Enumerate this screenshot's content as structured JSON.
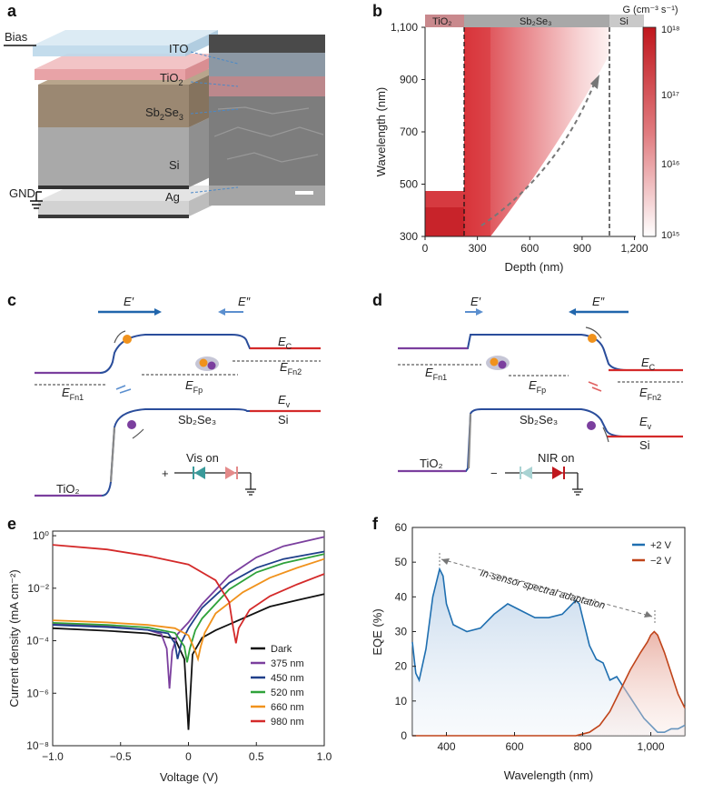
{
  "panels": {
    "a": {
      "letter": "a",
      "labels": {
        "bias": "Bias",
        "gnd": "GND",
        "ito": "ITO",
        "tio2": "TiO",
        "tio2_sub": "2",
        "sb": "Sb",
        "sb_sub1": "2",
        "se": "Se",
        "sb_sub2": "3",
        "si": "Si",
        "ag": "Ag"
      }
    },
    "b": {
      "letter": "b",
      "top_labels": [
        "TiO₂",
        "Sb₂Se₃",
        "Si"
      ],
      "xlabel": "Depth (nm)",
      "ylabel": "Wavelength (nm)",
      "xticks": [
        "0",
        "300",
        "600",
        "900",
        "1,200"
      ],
      "yticks": [
        "300",
        "500",
        "700",
        "900",
        "1,100"
      ],
      "colorbar_label": "G (cm⁻³ s⁻¹)",
      "colorbar_ticks": [
        "10¹⁸",
        "10¹⁷",
        "10¹⁶",
        "10¹⁵"
      ]
    },
    "c": {
      "letter": "c",
      "labels": {
        "e1": "E′",
        "e2": "E″",
        "ec": "E",
        "ec_sub": "C",
        "efn2": "E",
        "efn2_sub": "Fn2",
        "efn1": "E",
        "efn1_sub": "Fn1",
        "efp": "E",
        "efp_sub": "Fp",
        "ev": "E",
        "ev_sub": "v",
        "sb2se3": "Sb₂Se₃",
        "si": "Si",
        "tio2": "TiO₂",
        "vis_on": "Vis on",
        "plus": "+"
      }
    },
    "d": {
      "letter": "d",
      "labels": {
        "e1": "E′",
        "e2": "E″",
        "ec": "E",
        "ec_sub": "C",
        "efn2": "E",
        "efn2_sub": "Fn2",
        "efn1": "E",
        "efn1_sub": "Fn1",
        "efp": "E",
        "efp_sub": "Fp",
        "ev": "E",
        "ev_sub": "v",
        "sb2se3": "Sb₂Se₃",
        "si": "Si",
        "tio2": "TiO₂",
        "nir_on": "NIR on",
        "minus": "−"
      }
    },
    "e": {
      "letter": "e",
      "xlabel": "Voltage (V)",
      "ylabel": "Current density (mA cm⁻²)",
      "xticks": [
        "−1.0",
        "−0.5",
        "0",
        "0.5",
        "1.0"
      ],
      "yticks": [
        "10⁰",
        "10⁻²",
        "10⁻⁴",
        "10⁻⁶",
        "10⁻⁸"
      ]
    },
    "f": {
      "letter": "f",
      "xlabel": "Wavelength (nm)",
      "ylabel": "EQE (%)",
      "xticks": [
        "400",
        "600",
        "800",
        "1,000"
      ],
      "yticks": [
        "0",
        "10",
        "20",
        "30",
        "40",
        "50",
        "60"
      ],
      "annotation": "In-sensor spectral adaptation"
    }
  },
  "chart_data": [
    {
      "type": "line",
      "panel": "e",
      "xlabel": "Voltage (V)",
      "ylabel": "Current density (mA cm⁻²)",
      "yscale": "log",
      "xlim": [
        -1.0,
        1.0
      ],
      "ylim": [
        1e-08,
        1.5
      ],
      "legend": "right",
      "series": [
        {
          "name": "Dark",
          "color": "#111111",
          "x": [
            -1.0,
            -0.6,
            -0.3,
            -0.1,
            -0.03,
            0.0,
            0.03,
            0.1,
            0.2,
            0.4,
            0.6,
            0.8,
            1.0
          ],
          "y": [
            0.0003,
            0.00024,
            0.00019,
            0.00012,
            2e-05,
            4e-08,
            3e-05,
            0.00013,
            0.00025,
            0.0007,
            0.002,
            0.0035,
            0.006
          ]
        },
        {
          "name": "375 nm",
          "color": "#7b3f9e",
          "x": [
            -1.0,
            -0.6,
            -0.3,
            -0.2,
            -0.16,
            -0.14,
            -0.12,
            -0.08,
            0.0,
            0.1,
            0.3,
            0.5,
            0.7,
            1.0
          ],
          "y": [
            0.00045,
            0.00035,
            0.00026,
            0.00018,
            5e-05,
            1.5e-06,
            4e-05,
            0.00018,
            0.0005,
            0.0025,
            0.03,
            0.15,
            0.4,
            0.9
          ]
        },
        {
          "name": "450 nm",
          "color": "#1f3f8a",
          "x": [
            -1.0,
            -0.6,
            -0.3,
            -0.15,
            -0.1,
            -0.08,
            -0.05,
            0.0,
            0.1,
            0.3,
            0.5,
            0.7,
            1.0
          ],
          "y": [
            0.0004,
            0.00033,
            0.00026,
            0.00019,
            8e-05,
            2e-05,
            9e-05,
            0.0003,
            0.0018,
            0.016,
            0.06,
            0.13,
            0.25
          ]
        },
        {
          "name": "520 nm",
          "color": "#2fa23a",
          "x": [
            -1.0,
            -0.6,
            -0.3,
            -0.1,
            -0.03,
            -0.01,
            0.01,
            0.05,
            0.1,
            0.3,
            0.5,
            0.7,
            1.0
          ],
          "y": [
            0.00048,
            0.0004,
            0.00032,
            0.0002,
            6e-05,
            1.5e-05,
            5e-05,
            0.00025,
            0.0007,
            0.009,
            0.04,
            0.09,
            0.2
          ]
        },
        {
          "name": "660 nm",
          "color": "#f0921c",
          "x": [
            -1.0,
            -0.6,
            -0.3,
            -0.1,
            0.0,
            0.05,
            0.07,
            0.09,
            0.12,
            0.2,
            0.4,
            0.6,
            0.8,
            1.0
          ],
          "y": [
            0.0006,
            0.0005,
            0.0004,
            0.0003,
            0.00016,
            4e-05,
            2e-05,
            6e-05,
            0.0002,
            0.0011,
            0.007,
            0.025,
            0.06,
            0.13
          ]
        },
        {
          "name": "980 nm",
          "color": "#d42a2a",
          "x": [
            -1.0,
            -0.6,
            -0.3,
            0.0,
            0.2,
            0.3,
            0.33,
            0.35,
            0.37,
            0.45,
            0.6,
            0.8,
            1.0
          ],
          "y": [
            0.45,
            0.3,
            0.17,
            0.08,
            0.02,
            0.003,
            0.0003,
            8e-05,
            0.0003,
            0.0015,
            0.005,
            0.014,
            0.035
          ]
        }
      ]
    },
    {
      "type": "area",
      "panel": "f",
      "xlabel": "Wavelength (nm)",
      "ylabel": "EQE (%)",
      "xlim": [
        300,
        1100
      ],
      "ylim": [
        0,
        60
      ],
      "legend": "top-right",
      "series": [
        {
          "name": "+2 V",
          "color": "#1f6fb0",
          "x": [
            300,
            310,
            320,
            340,
            360,
            380,
            390,
            400,
            420,
            460,
            500,
            540,
            580,
            620,
            660,
            700,
            740,
            760,
            780,
            790,
            800,
            820,
            840,
            860,
            880,
            900,
            920,
            940,
            960,
            980,
            1000,
            1020,
            1040,
            1060,
            1080,
            1100
          ],
          "y": [
            27,
            18,
            16,
            25,
            40,
            48,
            46,
            38,
            32,
            30,
            31,
            35,
            38,
            36,
            34,
            34,
            35,
            37,
            39,
            38,
            34,
            26,
            22,
            21,
            16,
            17,
            14,
            11,
            8,
            5,
            3,
            1,
            1,
            2,
            2,
            3
          ]
        },
        {
          "name": "−2 V",
          "color": "#c0441a",
          "x": [
            300,
            400,
            500,
            600,
            700,
            780,
            820,
            850,
            880,
            910,
            940,
            970,
            990,
            1000,
            1010,
            1020,
            1040,
            1060,
            1080,
            1100
          ],
          "y": [
            0,
            0,
            0,
            0,
            0,
            0,
            1,
            3,
            7,
            13,
            19,
            24,
            27,
            29,
            30,
            29,
            24,
            18,
            12,
            8
          ]
        }
      ]
    },
    {
      "type": "heatmap",
      "panel": "b",
      "xlabel": "Depth (nm)",
      "ylabel": "Wavelength (nm)",
      "xlim": [
        0,
        1250
      ],
      "ylim": [
        300,
        1100
      ],
      "colorbar": {
        "label": "G (cm⁻³ s⁻¹)",
        "scale": "log",
        "range": [
          1000000000000000.0,
          1e+18
        ]
      },
      "regions": [
        {
          "name": "TiO₂",
          "depth": [
            0,
            210
          ]
        },
        {
          "name": "Sb₂Se₃",
          "depth": [
            210,
            1010
          ]
        },
        {
          "name": "Si",
          "depth": [
            1010,
            1250
          ]
        }
      ]
    }
  ]
}
